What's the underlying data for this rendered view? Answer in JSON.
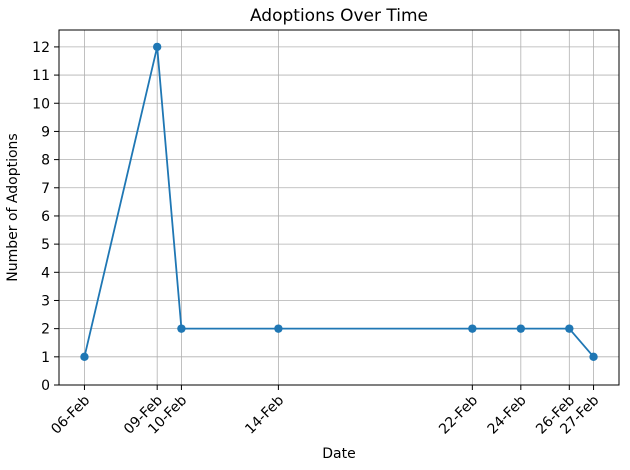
{
  "chart_data": {
    "type": "line",
    "title": "Adoptions Over Time",
    "xlabel": "Date",
    "ylabel": "Number of Adoptions",
    "categories": [
      "06-Feb",
      "09-Feb",
      "10-Feb",
      "14-Feb",
      "22-Feb",
      "24-Feb",
      "26-Feb",
      "27-Feb"
    ],
    "x_numeric": [
      6,
      9,
      10,
      14,
      22,
      24,
      26,
      27
    ],
    "series": [
      {
        "name": "Adoptions",
        "values": [
          1,
          12,
          2,
          2,
          2,
          2,
          2,
          1
        ]
      }
    ],
    "y_ticks": [
      0,
      1,
      2,
      3,
      4,
      5,
      6,
      7,
      8,
      9,
      10,
      11,
      12
    ],
    "xlim": [
      4.95,
      28.05
    ],
    "ylim": [
      0,
      12.6
    ],
    "grid": true,
    "legend": "none",
    "line_color": "#1f77b4",
    "marker_style": "circle",
    "grid_color": "#b0b0b0",
    "axis_color": "#000000",
    "background_color": "#ffffff"
  }
}
